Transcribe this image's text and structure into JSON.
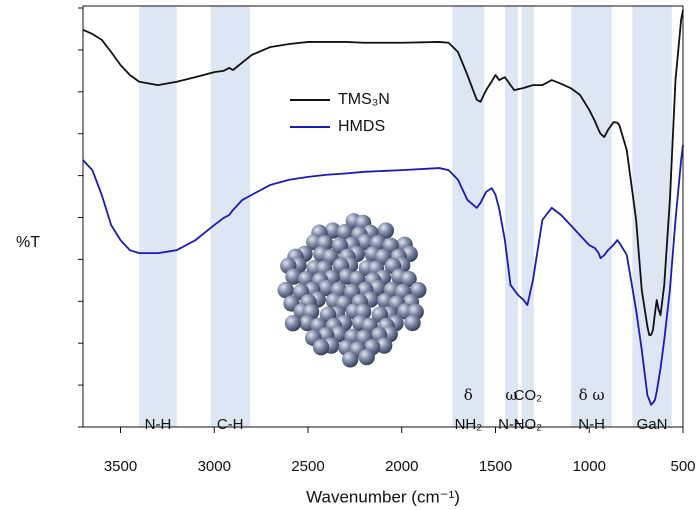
{
  "chart_data": {
    "type": "line",
    "xlabel": "Wavenumber (cm⁻¹)",
    "ylabel": "%T",
    "x": [
      3700,
      3650,
      3600,
      3550,
      3500,
      3450,
      3400,
      3300,
      3200,
      3100,
      3000,
      2950,
      2920,
      2900,
      2850,
      2800,
      2700,
      2600,
      2500,
      2400,
      2300,
      2200,
      2000,
      1800,
      1750,
      1700,
      1650,
      1600,
      1580,
      1550,
      1520,
      1500,
      1480,
      1450,
      1420,
      1400,
      1380,
      1350,
      1330,
      1300,
      1250,
      1200,
      1150,
      1100,
      1050,
      1000,
      970,
      950,
      940,
      920,
      900,
      870,
      850,
      840,
      800,
      750,
      720,
      690,
      680,
      670,
      660,
      650,
      640,
      630,
      620,
      600,
      570,
      540,
      510,
      500
    ],
    "series": [
      {
        "name": "TMS₃N",
        "color": "#111111",
        "values": [
          94.8,
          93.8,
          92.4,
          89.5,
          86.4,
          84.0,
          82.4,
          81.6,
          82.4,
          83.5,
          84.7,
          85.0,
          85.7,
          85.2,
          87.0,
          88.8,
          90.7,
          91.4,
          91.9,
          91.9,
          91.9,
          91.7,
          91.7,
          91.9,
          91.7,
          89.5,
          84.0,
          78.1,
          77.6,
          80.4,
          82.5,
          84.0,
          82.8,
          83.5,
          81.6,
          80.4,
          80.6,
          80.9,
          81.2,
          81.6,
          81.6,
          82.8,
          81.9,
          80.9,
          79.3,
          75.7,
          73.0,
          70.9,
          70.0,
          69.2,
          70.9,
          72.8,
          72.6,
          72.1,
          66.1,
          49.4,
          32.7,
          24.0,
          21.9,
          22.0,
          23.2,
          27.0,
          30.3,
          28.0,
          26.7,
          33.9,
          54.2,
          82.8,
          97.2,
          99.5
        ]
      },
      {
        "name": "HMDS",
        "color": "#1a1ab8",
        "values": [
          63.7,
          61.3,
          55.4,
          48.2,
          44.6,
          42.2,
          41.5,
          41.5,
          42.2,
          44.6,
          48.2,
          49.9,
          50.6,
          51.8,
          54.2,
          55.4,
          57.8,
          59.0,
          59.7,
          60.2,
          60.5,
          60.9,
          61.3,
          61.8,
          61.3,
          59.0,
          54.2,
          52.3,
          53.5,
          56.1,
          57.0,
          55.4,
          52.0,
          44.6,
          33.9,
          32.7,
          31.5,
          30.3,
          29.1,
          35.1,
          49.4,
          52.3,
          50.6,
          48.2,
          45.8,
          43.4,
          42.7,
          41.5,
          40.3,
          41.0,
          42.2,
          43.5,
          44.6,
          44.0,
          41.1,
          27.9,
          18.4,
          7.6,
          6.5,
          5.3,
          5.8,
          6.4,
          8.5,
          11.2,
          14.0,
          20.8,
          32.7,
          49.4,
          63.7,
          67.3
        ]
      }
    ],
    "xlim": [
      3700,
      500
    ],
    "xticks": [
      3500,
      3000,
      2500,
      2000,
      1500,
      1000,
      500
    ],
    "ylim": [
      0,
      100
    ],
    "yticks": [
      0,
      10,
      20,
      30,
      40,
      50,
      60,
      70,
      80,
      90,
      100
    ],
    "legend": "upper center",
    "band_color": "#dde6f3",
    "bands": [
      {
        "from": 3400,
        "to": 3200,
        "label": [
          "N-H"
        ]
      },
      {
        "from": 3020,
        "to": 2810,
        "label": [
          "C-H"
        ]
      },
      {
        "from": 1730,
        "to": 1560,
        "label": [
          "δ",
          "NH₂"
        ]
      },
      {
        "from": 1450,
        "to": 1380,
        "label": [
          "ω",
          "N-H"
        ]
      },
      {
        "from": 1360,
        "to": 1295,
        "label": [
          "CO₂",
          "NO₂"
        ]
      },
      {
        "from": 1095,
        "to": 880,
        "label": [
          "δ ω",
          "N-H"
        ]
      },
      {
        "from": 770,
        "to": 560,
        "label": [
          "GaN"
        ]
      }
    ]
  }
}
